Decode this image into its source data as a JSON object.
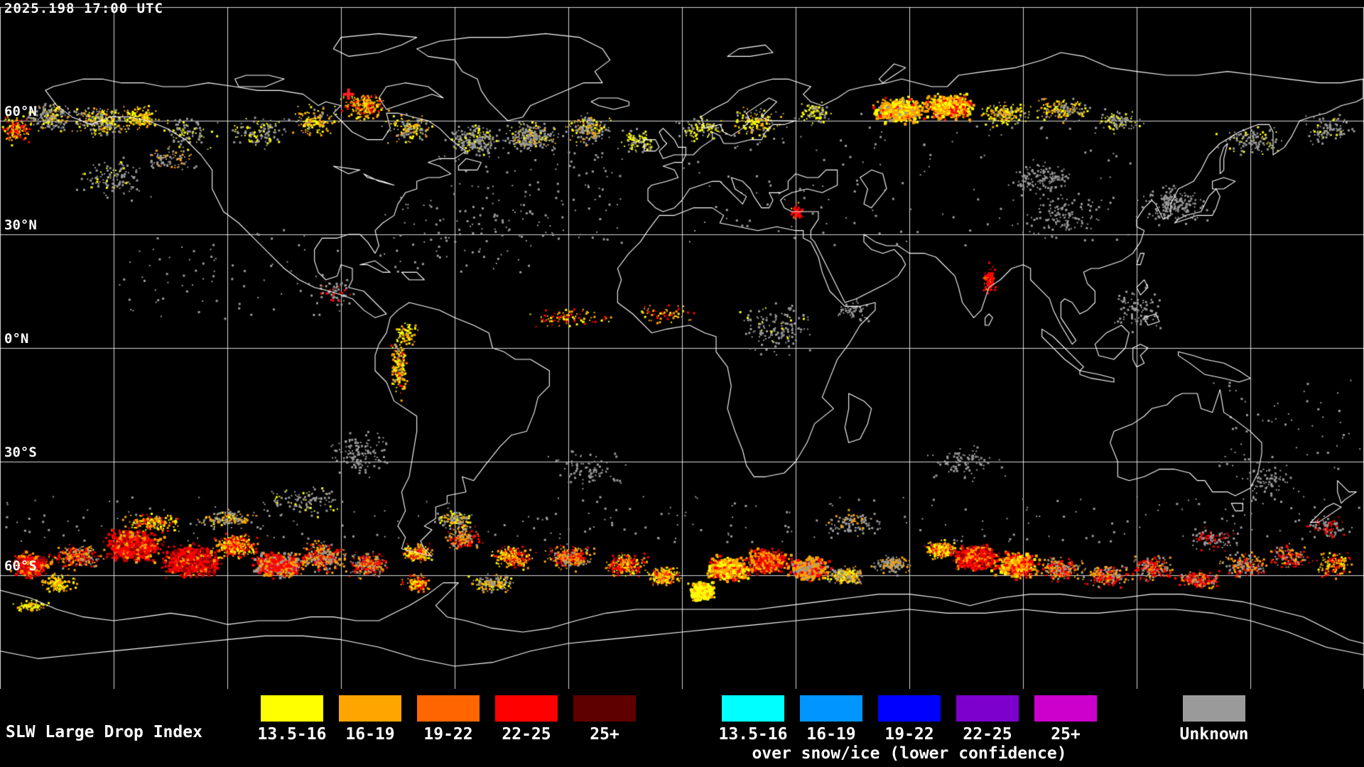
{
  "header": {
    "timestamp": "2025.198 17:00 UTC"
  },
  "map": {
    "latitude_labels": [
      {
        "label": "60°N"
      },
      {
        "label": "30°N"
      },
      {
        "label": "0°N"
      },
      {
        "label": "30°S"
      },
      {
        "label": "60°S"
      }
    ]
  },
  "legend": {
    "title": "SLW Large Drop Index",
    "standard": [
      {
        "label": "13.5-16",
        "color": "#ffff00"
      },
      {
        "label": "16-19",
        "color": "#ffa500"
      },
      {
        "label": "19-22",
        "color": "#ff6600"
      },
      {
        "label": "22-25",
        "color": "#ff0000"
      },
      {
        "label": "25+",
        "color": "#5e0000"
      }
    ],
    "snow_ice": [
      {
        "label": "13.5-16",
        "color": "#00ffff"
      },
      {
        "label": "16-19",
        "color": "#0095ff"
      },
      {
        "label": "19-22",
        "color": "#0000ff"
      },
      {
        "label": "22-25",
        "color": "#7d00cc"
      },
      {
        "label": "25+",
        "color": "#cc00cc"
      }
    ],
    "snow_ice_note": "over snow/ice (lower confidence)",
    "unknown": {
      "label": "Unknown",
      "color": "#9a9a9a"
    }
  }
}
